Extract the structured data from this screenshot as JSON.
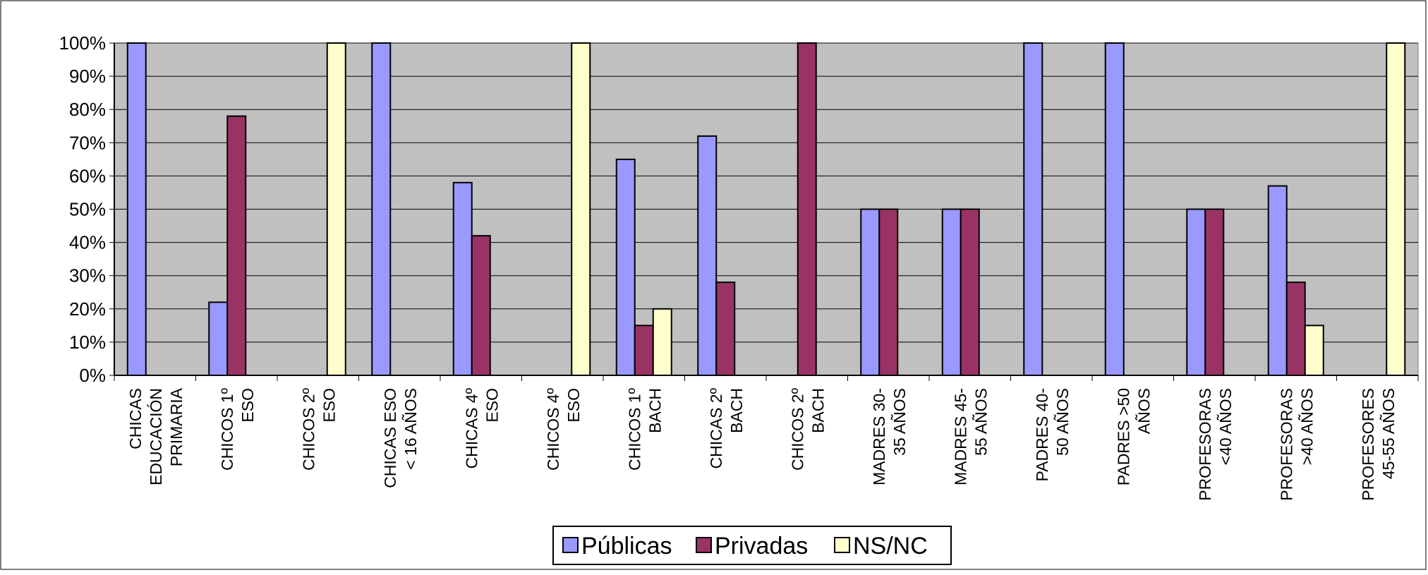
{
  "chart_data": {
    "type": "bar",
    "title": "",
    "xlabel": "",
    "ylabel": "",
    "ylim": [
      0,
      100
    ],
    "yticks": [
      "0%",
      "10%",
      "20%",
      "30%",
      "40%",
      "50%",
      "60%",
      "70%",
      "80%",
      "90%",
      "100%"
    ],
    "grid": true,
    "legend_position": "bottom",
    "categories": [
      [
        "CHICAS",
        "EDUCACIÓN",
        "PRIMARIA"
      ],
      [
        "CHICOS 1º",
        "ESO"
      ],
      [
        "CHICOS 2º",
        "ESO"
      ],
      [
        "CHICAS ESO",
        "< 16 AÑOS"
      ],
      [
        "CHICAS 4º",
        "ESO"
      ],
      [
        "CHICOS 4º",
        "ESO"
      ],
      [
        "CHICOS 1º",
        "BACH"
      ],
      [
        "CHICAS 2º",
        "BACH"
      ],
      [
        "CHICOS 2º",
        "BACH"
      ],
      [
        "MADRES 30-",
        "35 AÑOS"
      ],
      [
        "MADRES 45-",
        "55 AÑOS"
      ],
      [
        "PADRES 40-",
        "50 AÑOS"
      ],
      [
        "PADRES >50",
        "AÑOS"
      ],
      [
        "PROFESORAS",
        "<40 AÑOS"
      ],
      [
        "PROFESORAS",
        ">40 AÑOS"
      ],
      [
        "PROFESORES",
        "45-55 AÑOS"
      ]
    ],
    "series": [
      {
        "name": "Públicas",
        "color": "#9999ff",
        "values": [
          100,
          22,
          0,
          100,
          58,
          0,
          65,
          72,
          0,
          50,
          50,
          100,
          100,
          50,
          57,
          0
        ]
      },
      {
        "name": "Privadas",
        "color": "#993366",
        "values": [
          0,
          78,
          0,
          0,
          42,
          0,
          15,
          28,
          100,
          50,
          50,
          0,
          0,
          50,
          28,
          0
        ]
      },
      {
        "name": "NS/NC",
        "color": "#ffffcc",
        "values": [
          0,
          0,
          100,
          0,
          0,
          100,
          20,
          0,
          0,
          0,
          0,
          0,
          0,
          0,
          15,
          100
        ]
      }
    ],
    "plot_background": "#c0c0c0"
  }
}
